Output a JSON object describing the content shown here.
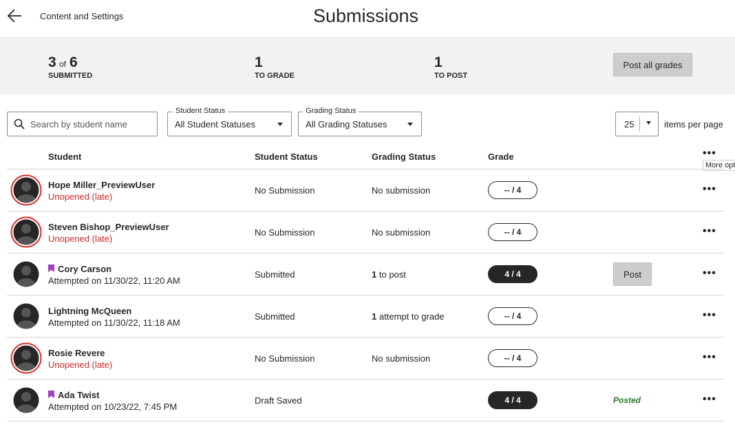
{
  "header": {
    "breadcrumb": "Content and Settings",
    "title": "Submissions"
  },
  "summary": {
    "submitted": {
      "count": 3,
      "of": "of",
      "total": 6,
      "label": "SUBMITTED"
    },
    "to_grade": {
      "count": 1,
      "label": "TO GRADE"
    },
    "to_post": {
      "count": 1,
      "label": "TO POST"
    },
    "post_all_button": "Post all grades"
  },
  "filters": {
    "search_placeholder": "Search by student name",
    "student_status": {
      "label": "Student Status",
      "value": "All Student Statuses"
    },
    "grading_status": {
      "label": "Grading Status",
      "value": "All Grading Statuses"
    },
    "per_page": {
      "value": 25,
      "label": "items per page"
    }
  },
  "table": {
    "columns": [
      "Student",
      "Student Status",
      "Grading Status",
      "Grade"
    ],
    "tooltip": "More opt",
    "rows": [
      {
        "name": "Hope Miller_PreviewUser",
        "note": "Unopened (late)",
        "student_status": "No Submission",
        "grading_status": {
          "text": "No submission"
        },
        "grade": "-- / 4"
      },
      {
        "name": "Steven Bishop_PreviewUser",
        "note": "Unopened (late)",
        "student_status": "No Submission",
        "grading_status": {
          "text": "No submission"
        },
        "grade": "-- / 4"
      },
      {
        "name": "Cory Carson",
        "note": "Attempted on 11/30/22, 11:20 AM",
        "student_status": "Submitted",
        "grading_status": {
          "count": 1,
          "text": "to post"
        },
        "grade": "4 / 4",
        "action": "Post"
      },
      {
        "name": "Lightning McQueen",
        "note": "Attempted on 11/30/22, 11:18 AM",
        "student_status": "Submitted",
        "grading_status": {
          "count": 1,
          "text": "attempt to grade"
        },
        "grade": "-- / 4"
      },
      {
        "name": "Rosie Revere",
        "note": "Unopened (late)",
        "student_status": "No Submission",
        "grading_status": {
          "text": "No submission"
        },
        "grade": "-- / 4"
      },
      {
        "name": "Ada Twist",
        "note": "Attempted on 10/23/22, 7:45 PM",
        "student_status": "Draft Saved",
        "grade": "4 / 4",
        "action": "Posted"
      }
    ]
  }
}
